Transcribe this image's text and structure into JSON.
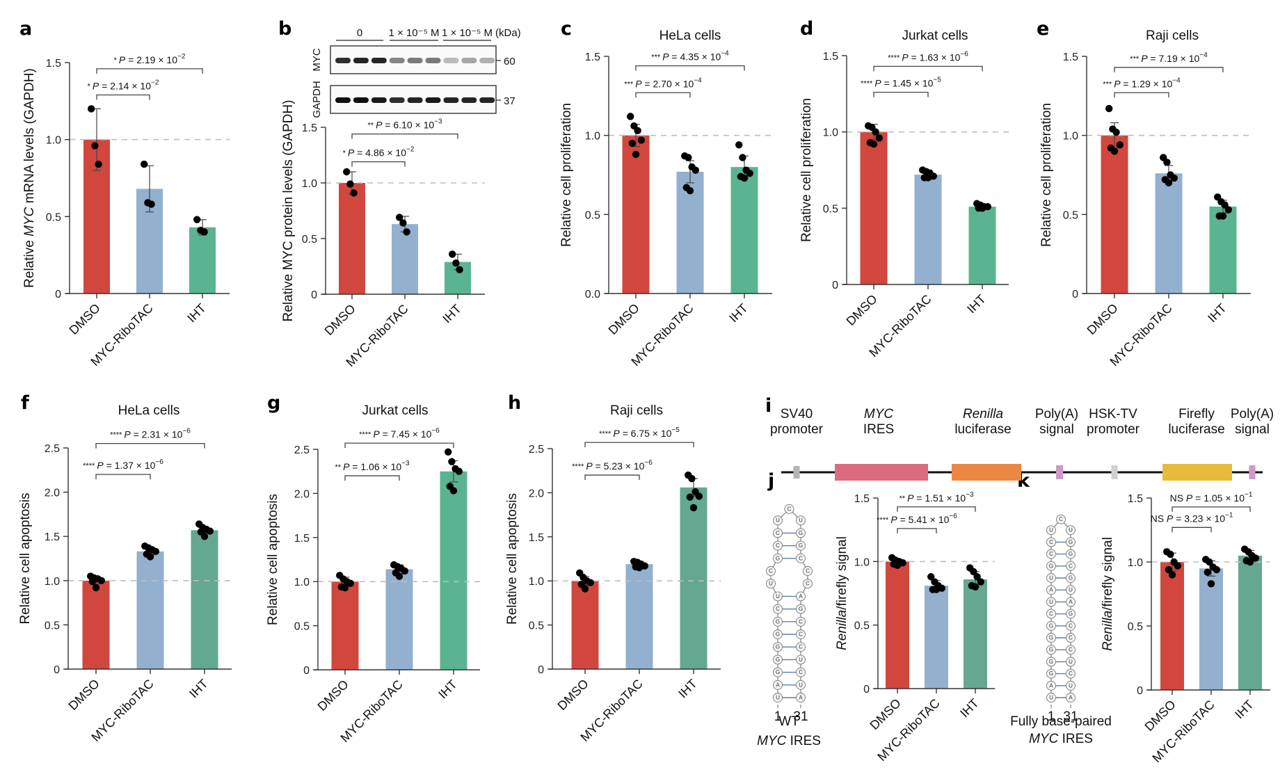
{
  "figure": {
    "colors": {
      "DMSO": "#d1473d",
      "MYC-RiboTAC": "#93b0ce",
      "IHT": "#5bb491",
      "IHT_alt": "#64a891",
      "reference_line": "#bdbdbd",
      "dots": "#000000"
    }
  },
  "blot": {
    "panel_label": "b",
    "groups": [
      "0",
      "1 × 10⁻⁵ M",
      "1 × 10⁻⁵ M"
    ],
    "unit_label": "(kDa)",
    "rows": [
      {
        "name": "MYC",
        "kDa": "60",
        "band_intensity": [
          0.85,
          0.9,
          0.9,
          0.45,
          0.5,
          0.5,
          0.2,
          0.3,
          0.25
        ]
      },
      {
        "name": "GAPDH",
        "kDa": "37",
        "band_intensity": [
          1.0,
          1.0,
          0.95,
          0.85,
          0.9,
          0.95,
          0.9,
          0.9,
          0.9
        ]
      }
    ]
  },
  "construct": {
    "panel_label": "i",
    "elements": [
      {
        "label1": "SV40",
        "label2": "promoter",
        "italic1": false,
        "type": "promoter",
        "color": "#b5b5b5"
      },
      {
        "label1": "MYC",
        "label2": "IRES",
        "italic1": true,
        "type": "block",
        "color": "#dc6b7d"
      },
      {
        "label1": "Renilla",
        "label2": "luciferase",
        "italic1": true,
        "type": "block",
        "color": "#ec8743"
      },
      {
        "label1": "Poly(A)",
        "label2": "signal",
        "italic1": false,
        "type": "signal",
        "color": "#cf9ac6"
      },
      {
        "label1": "HSK-TV",
        "label2": "promoter",
        "italic1": false,
        "type": "promoter",
        "color": "#cfcfcf"
      },
      {
        "label1": "Firefly",
        "label2": "luciferase",
        "italic1": false,
        "type": "block",
        "color": "#e6bb3a"
      },
      {
        "label1": "Poly(A)",
        "label2": "signal",
        "italic1": false,
        "type": "signal",
        "color": "#cf9ac6"
      }
    ]
  },
  "hairpins": [
    {
      "panel": "j",
      "caption1": "WT",
      "caption2_italic": "MYC",
      "caption2_rest": " IRES",
      "start_label": "1",
      "end_label": "31",
      "left_strand_bottom_up": [
        "U",
        "A",
        "G",
        "G",
        "G",
        "G",
        "G",
        "C",
        "U",
        "U",
        "C",
        "G",
        "C",
        "C",
        "U"
      ],
      "loop": "C",
      "right_strand_bottom_up": [
        "A",
        "U",
        "C",
        "U",
        "C",
        "C",
        "C",
        "G",
        "A",
        "C",
        "C",
        "C",
        "G",
        "G",
        "U"
      ],
      "paired": [
        true,
        true,
        true,
        true,
        true,
        true,
        true,
        true,
        true,
        false,
        false,
        true,
        true,
        true,
        false
      ],
      "highlight": {}
    },
    {
      "panel": "k",
      "caption1": "Fully base-paired",
      "caption2_italic": "MYC",
      "caption2_rest": " IRES",
      "start_label": "1",
      "end_label": "31",
      "left_strand_bottom_up": [
        "U",
        "A",
        "G",
        "G",
        "G",
        "G",
        "G",
        "C",
        "U",
        "A",
        "U",
        "G",
        "C",
        "C",
        "U"
      ],
      "loop": "C",
      "right_strand_bottom_up": [
        "A",
        "U",
        "C",
        "U",
        "C",
        "C",
        "C",
        "G",
        "A",
        "U",
        "G",
        "C",
        "G",
        "G",
        "U"
      ],
      "paired": [
        true,
        true,
        true,
        true,
        true,
        true,
        true,
        true,
        true,
        true,
        true,
        true,
        true,
        true,
        false
      ],
      "highlight": {
        "L9": "#e8b13a",
        "L10": "#2a8fd0",
        "R9": "#2a8fd0",
        "R10": "#cf2030"
      }
    }
  ],
  "chart_data": [
    {
      "panel": "a",
      "type": "bar",
      "title": "",
      "ylabel_parts": [
        [
          "Relative ",
          false
        ],
        [
          "MYC",
          true
        ],
        [
          " mRNA levels (GAPDH)",
          false
        ]
      ],
      "categories": [
        "DMSO",
        "MYC-RiboTAC",
        "IHT"
      ],
      "values": [
        1.0,
        0.68,
        0.43
      ],
      "errors": [
        0.2,
        0.15,
        0.05
      ],
      "points": [
        [
          1.2,
          0.96,
          0.84
        ],
        [
          0.84,
          0.59,
          0.58
        ],
        [
          0.48,
          0.41,
          0.4
        ]
      ],
      "yticks": [
        "0",
        "0.5",
        "1.0",
        "1.5"
      ],
      "ytick_values": [
        0,
        0.5,
        1.0,
        1.5
      ],
      "ylim": [
        0,
        1.5
      ],
      "comparisons": [
        {
          "from": 0,
          "to": 1,
          "stars": "*",
          "p": "P = 2.14 × 10",
          "exp": "−2",
          "level": 1.29
        },
        {
          "from": 0,
          "to": 2,
          "stars": "*",
          "p": "P = 2.19 × 10",
          "exp": "−2",
          "level": 1.46
        }
      ],
      "reference_line": 1.0
    },
    {
      "panel": "b",
      "type": "bar",
      "title": "",
      "ylabel_parts": [
        [
          "Relative MYC protein levels (GAPDH)",
          false
        ]
      ],
      "categories": [
        "DMSO",
        "MYC-RiboTAC",
        "IHT"
      ],
      "values": [
        1.0,
        0.63,
        0.29
      ],
      "errors": [
        0.1,
        0.07,
        0.07
      ],
      "points": [
        [
          1.1,
          0.99,
          0.91
        ],
        [
          0.69,
          0.64,
          0.56
        ],
        [
          0.36,
          0.28,
          0.22
        ]
      ],
      "yticks": [
        "0",
        "0.5",
        "1.0",
        "1.5"
      ],
      "ytick_values": [
        0,
        0.5,
        1.0,
        1.5
      ],
      "ylim": [
        0,
        1.5
      ],
      "comparisons": [
        {
          "from": 0,
          "to": 1,
          "stars": "*",
          "p": "P = 4.86 × 10",
          "exp": "−2",
          "level": 1.19
        },
        {
          "from": 0,
          "to": 2,
          "stars": "**",
          "p": "P = 6.10 × 10",
          "exp": "−3",
          "level": 1.44
        }
      ],
      "reference_line": 1.0
    },
    {
      "panel": "c",
      "type": "bar",
      "title": "HeLa cells",
      "ylabel_parts": [
        [
          "Relative cell proliferation",
          false
        ]
      ],
      "categories": [
        "DMSO",
        "MYC-RiboTAC",
        "IHT"
      ],
      "values": [
        1.0,
        0.77,
        0.8
      ],
      "errors": [
        0.07,
        0.07,
        0.07
      ],
      "points": [
        [
          1.12,
          1.06,
          1.03,
          0.97,
          0.95,
          0.88
        ],
        [
          0.87,
          0.86,
          0.8,
          0.78,
          0.67,
          0.65
        ],
        [
          0.94,
          0.86,
          0.78,
          0.76,
          0.74,
          0.73
        ]
      ],
      "yticks": [
        "0.0",
        "0.5",
        "1.0",
        "1.5"
      ],
      "ytick_values": [
        0,
        0.5,
        1.0,
        1.5
      ],
      "ylim": [
        0,
        1.5
      ],
      "comparisons": [
        {
          "from": 0,
          "to": 1,
          "stars": "***",
          "p": "P = 2.70 × 10",
          "exp": "−4",
          "level": 1.27
        },
        {
          "from": 0,
          "to": 2,
          "stars": "***",
          "p": "P = 4.35 × 10",
          "exp": "−4",
          "level": 1.44
        }
      ],
      "reference_line": 1.0
    },
    {
      "panel": "d",
      "type": "bar",
      "title": "Jurkat cells",
      "ylabel_parts": [
        [
          "Relative cell proliferation",
          false
        ]
      ],
      "categories": [
        "DMSO",
        "MYC-RiboTAC",
        "IHT"
      ],
      "values": [
        1.0,
        0.72,
        0.51
      ],
      "errors": [
        0.05,
        0.03,
        0.01
      ],
      "points": [
        [
          1.04,
          1.03,
          1.0,
          0.96,
          0.93,
          0.92
        ],
        [
          0.75,
          0.74,
          0.73,
          0.71,
          0.7,
          0.7
        ],
        [
          0.53,
          0.52,
          0.51,
          0.51,
          0.5,
          0.5
        ]
      ],
      "yticks": [
        "0",
        "0.5",
        "1.0",
        "1.5"
      ],
      "ytick_values": [
        0,
        0.5,
        1.0,
        1.5
      ],
      "ylim": [
        0,
        1.5
      ],
      "comparisons": [
        {
          "from": 0,
          "to": 1,
          "stars": "****",
          "p": "P = 1.45 × 10",
          "exp": "−5",
          "level": 1.26
        },
        {
          "from": 0,
          "to": 2,
          "stars": "****",
          "p": "P = 1.63 × 10",
          "exp": "−6",
          "level": 1.43
        }
      ],
      "reference_line": 1.0
    },
    {
      "panel": "e",
      "type": "bar",
      "title": "Raji cells",
      "ylabel_parts": [
        [
          "Relative cell proliferation",
          false
        ]
      ],
      "categories": [
        "DMSO",
        "MYC-RiboTAC",
        "IHT"
      ],
      "values": [
        1.0,
        0.76,
        0.55
      ],
      "errors": [
        0.08,
        0.05,
        0.04
      ],
      "points": [
        [
          1.17,
          1.04,
          1.02,
          0.94,
          0.92,
          0.9
        ],
        [
          0.86,
          0.83,
          0.75,
          0.73,
          0.72,
          0.7
        ],
        [
          0.61,
          0.58,
          0.56,
          0.53,
          0.49,
          0.49
        ]
      ],
      "yticks": [
        "0",
        "0.5",
        "1.0",
        "1.5"
      ],
      "ytick_values": [
        0,
        0.5,
        1.0,
        1.5
      ],
      "ylim": [
        0,
        1.5
      ],
      "comparisons": [
        {
          "from": 0,
          "to": 1,
          "stars": "***",
          "p": "P = 1.29 × 10",
          "exp": "−4",
          "level": 1.27
        },
        {
          "from": 0,
          "to": 2,
          "stars": "***",
          "p": "P = 7.19 × 10",
          "exp": "−4",
          "level": 1.43
        }
      ],
      "reference_line": 1.0
    },
    {
      "panel": "f",
      "type": "bar",
      "title": "HeLa cells",
      "ylabel_parts": [
        [
          "Relative cell apoptosis",
          false
        ]
      ],
      "categories": [
        "DMSO",
        "MYC-RiboTAC",
        "IHT"
      ],
      "values": [
        1.0,
        1.33,
        1.57
      ],
      "errors": [
        0.04,
        0.04,
        0.04
      ],
      "points": [
        [
          1.05,
          1.03,
          1.02,
          1.0,
          0.99,
          0.92
        ],
        [
          1.39,
          1.37,
          1.35,
          1.33,
          1.3,
          1.27
        ],
        [
          1.64,
          1.6,
          1.58,
          1.56,
          1.55,
          1.5
        ]
      ],
      "yticks": [
        "0",
        "0.5",
        "1.0",
        "1.5",
        "2.0",
        "2.5"
      ],
      "ytick_values": [
        0,
        0.5,
        1.0,
        1.5,
        2.0,
        2.5
      ],
      "ylim": [
        0,
        2.5
      ],
      "comparisons": [
        {
          "from": 0,
          "to": 1,
          "stars": "****",
          "p": "P = 1.37 × 10",
          "exp": "−6",
          "level": 2.2
        },
        {
          "from": 0,
          "to": 2,
          "stars": "****",
          "p": "P = 2.31 × 10",
          "exp": "−6",
          "level": 2.55
        }
      ],
      "reference_line": 1.0
    },
    {
      "panel": "g",
      "type": "bar",
      "title": "Jurkat cells",
      "ylabel_parts": [
        [
          "Relative cell apoptosis",
          false
        ]
      ],
      "categories": [
        "DMSO",
        "MYC-RiboTAC",
        "IHT"
      ],
      "values": [
        1.0,
        1.14,
        2.25
      ],
      "errors": [
        0.05,
        0.05,
        0.12
      ],
      "points": [
        [
          1.07,
          1.03,
          1.0,
          0.98,
          0.94,
          0.93
        ],
        [
          1.19,
          1.17,
          1.15,
          1.12,
          1.1,
          1.06
        ],
        [
          2.47,
          2.36,
          2.28,
          2.25,
          2.08,
          2.03
        ]
      ],
      "yticks": [
        "0",
        "0.5",
        "1.0",
        "1.5",
        "2.0",
        "2.5"
      ],
      "ytick_values": [
        0,
        0.5,
        1.0,
        1.5,
        2.0,
        2.5
      ],
      "ylim": [
        0,
        2.5
      ],
      "comparisons": [
        {
          "from": 0,
          "to": 1,
          "stars": "**",
          "p": "P = 1.06 × 10",
          "exp": "−3",
          "level": 2.2
        },
        {
          "from": 0,
          "to": 2,
          "stars": "****",
          "p": "P = 7.45 × 10",
          "exp": "−6",
          "level": 2.57
        }
      ],
      "reference_line": 1.0
    },
    {
      "panel": "h",
      "type": "bar",
      "title": "Raji cells",
      "ylabel_parts": [
        [
          "Relative cell apoptosis",
          false
        ]
      ],
      "categories": [
        "DMSO",
        "MYC-RiboTAC",
        "IHT"
      ],
      "values": [
        1.0,
        1.19,
        2.06
      ],
      "errors": [
        0.05,
        0.03,
        0.1
      ],
      "points": [
        [
          1.09,
          1.04,
          1.0,
          0.98,
          0.96,
          0.91
        ],
        [
          1.22,
          1.21,
          1.19,
          1.17,
          1.16,
          1.15
        ],
        [
          2.2,
          2.16,
          2.01,
          1.96,
          1.95,
          1.83
        ]
      ],
      "yticks": [
        "0",
        "0.5",
        "1.0",
        "1.5",
        "2.0",
        "2.5"
      ],
      "ytick_values": [
        0,
        0.5,
        1.0,
        1.5,
        2.0,
        2.5
      ],
      "ylim": [
        0,
        2.5
      ],
      "comparisons": [
        {
          "from": 0,
          "to": 1,
          "stars": "****",
          "p": "P = 5.23 × 10",
          "exp": "−6",
          "level": 2.2
        },
        {
          "from": 0,
          "to": 2,
          "stars": "****",
          "p": "P = 6.75 × 10",
          "exp": "−5",
          "level": 2.57
        }
      ],
      "reference_line": 1.0
    },
    {
      "panel": "j",
      "type": "bar",
      "title": "",
      "ylabel_parts": [
        [
          "Renilla",
          true
        ],
        [
          "/firefly signal",
          false
        ]
      ],
      "categories": [
        "DMSO",
        "MYC-RiboTAC",
        "IHT"
      ],
      "values": [
        1.0,
        0.81,
        0.86
      ],
      "errors": [
        0.02,
        0.04,
        0.06
      ],
      "points": [
        [
          1.03,
          1.01,
          1.0,
          0.99,
          0.98,
          0.97
        ],
        [
          0.88,
          0.84,
          0.81,
          0.79,
          0.78,
          0.78
        ],
        [
          0.95,
          0.92,
          0.88,
          0.84,
          0.81,
          0.8
        ]
      ],
      "yticks": [
        "0",
        "0.5",
        "1.0",
        "1.5"
      ],
      "ytick_values": [
        0,
        0.5,
        1.0,
        1.5
      ],
      "ylim": [
        0,
        1.5
      ],
      "comparisons": [
        {
          "from": 0,
          "to": 1,
          "stars": "****",
          "p": "P = 5.41 × 10",
          "exp": "−6",
          "level": 1.26
        },
        {
          "from": 0,
          "to": 2,
          "stars": "**",
          "p": "P = 1.51 × 10",
          "exp": "−3",
          "level": 1.43
        }
      ],
      "reference_line": 1.0
    },
    {
      "panel": "k",
      "type": "bar",
      "title": "",
      "ylabel_parts": [
        [
          "Renilla",
          true
        ],
        [
          "/firefly signal",
          false
        ]
      ],
      "categories": [
        "DMSO",
        "MYC-RiboTAC",
        "IHT"
      ],
      "values": [
        1.0,
        0.95,
        1.05
      ],
      "errors": [
        0.07,
        0.06,
        0.04
      ],
      "points": [
        [
          1.08,
          1.06,
          1.0,
          0.97,
          0.94,
          0.9
        ],
        [
          1.02,
          1.0,
          0.96,
          0.94,
          0.92,
          0.83
        ],
        [
          1.1,
          1.08,
          1.05,
          1.03,
          1.01,
          1.0
        ]
      ],
      "yticks": [
        "0",
        "0.5",
        "1.0",
        "1.5"
      ],
      "ytick_values": [
        0,
        0.5,
        1.0,
        1.5
      ],
      "ylim": [
        0,
        1.5
      ],
      "comparisons": [
        {
          "from": 0,
          "to": 1,
          "stars": "NS",
          "p": "P = 3.23 × 10",
          "exp": "−1",
          "level": 1.27
        },
        {
          "from": 0,
          "to": 2,
          "stars": "NS",
          "p": "P = 1.05 × 10",
          "exp": "−1",
          "level": 1.43
        }
      ],
      "reference_line": 1.0
    }
  ]
}
